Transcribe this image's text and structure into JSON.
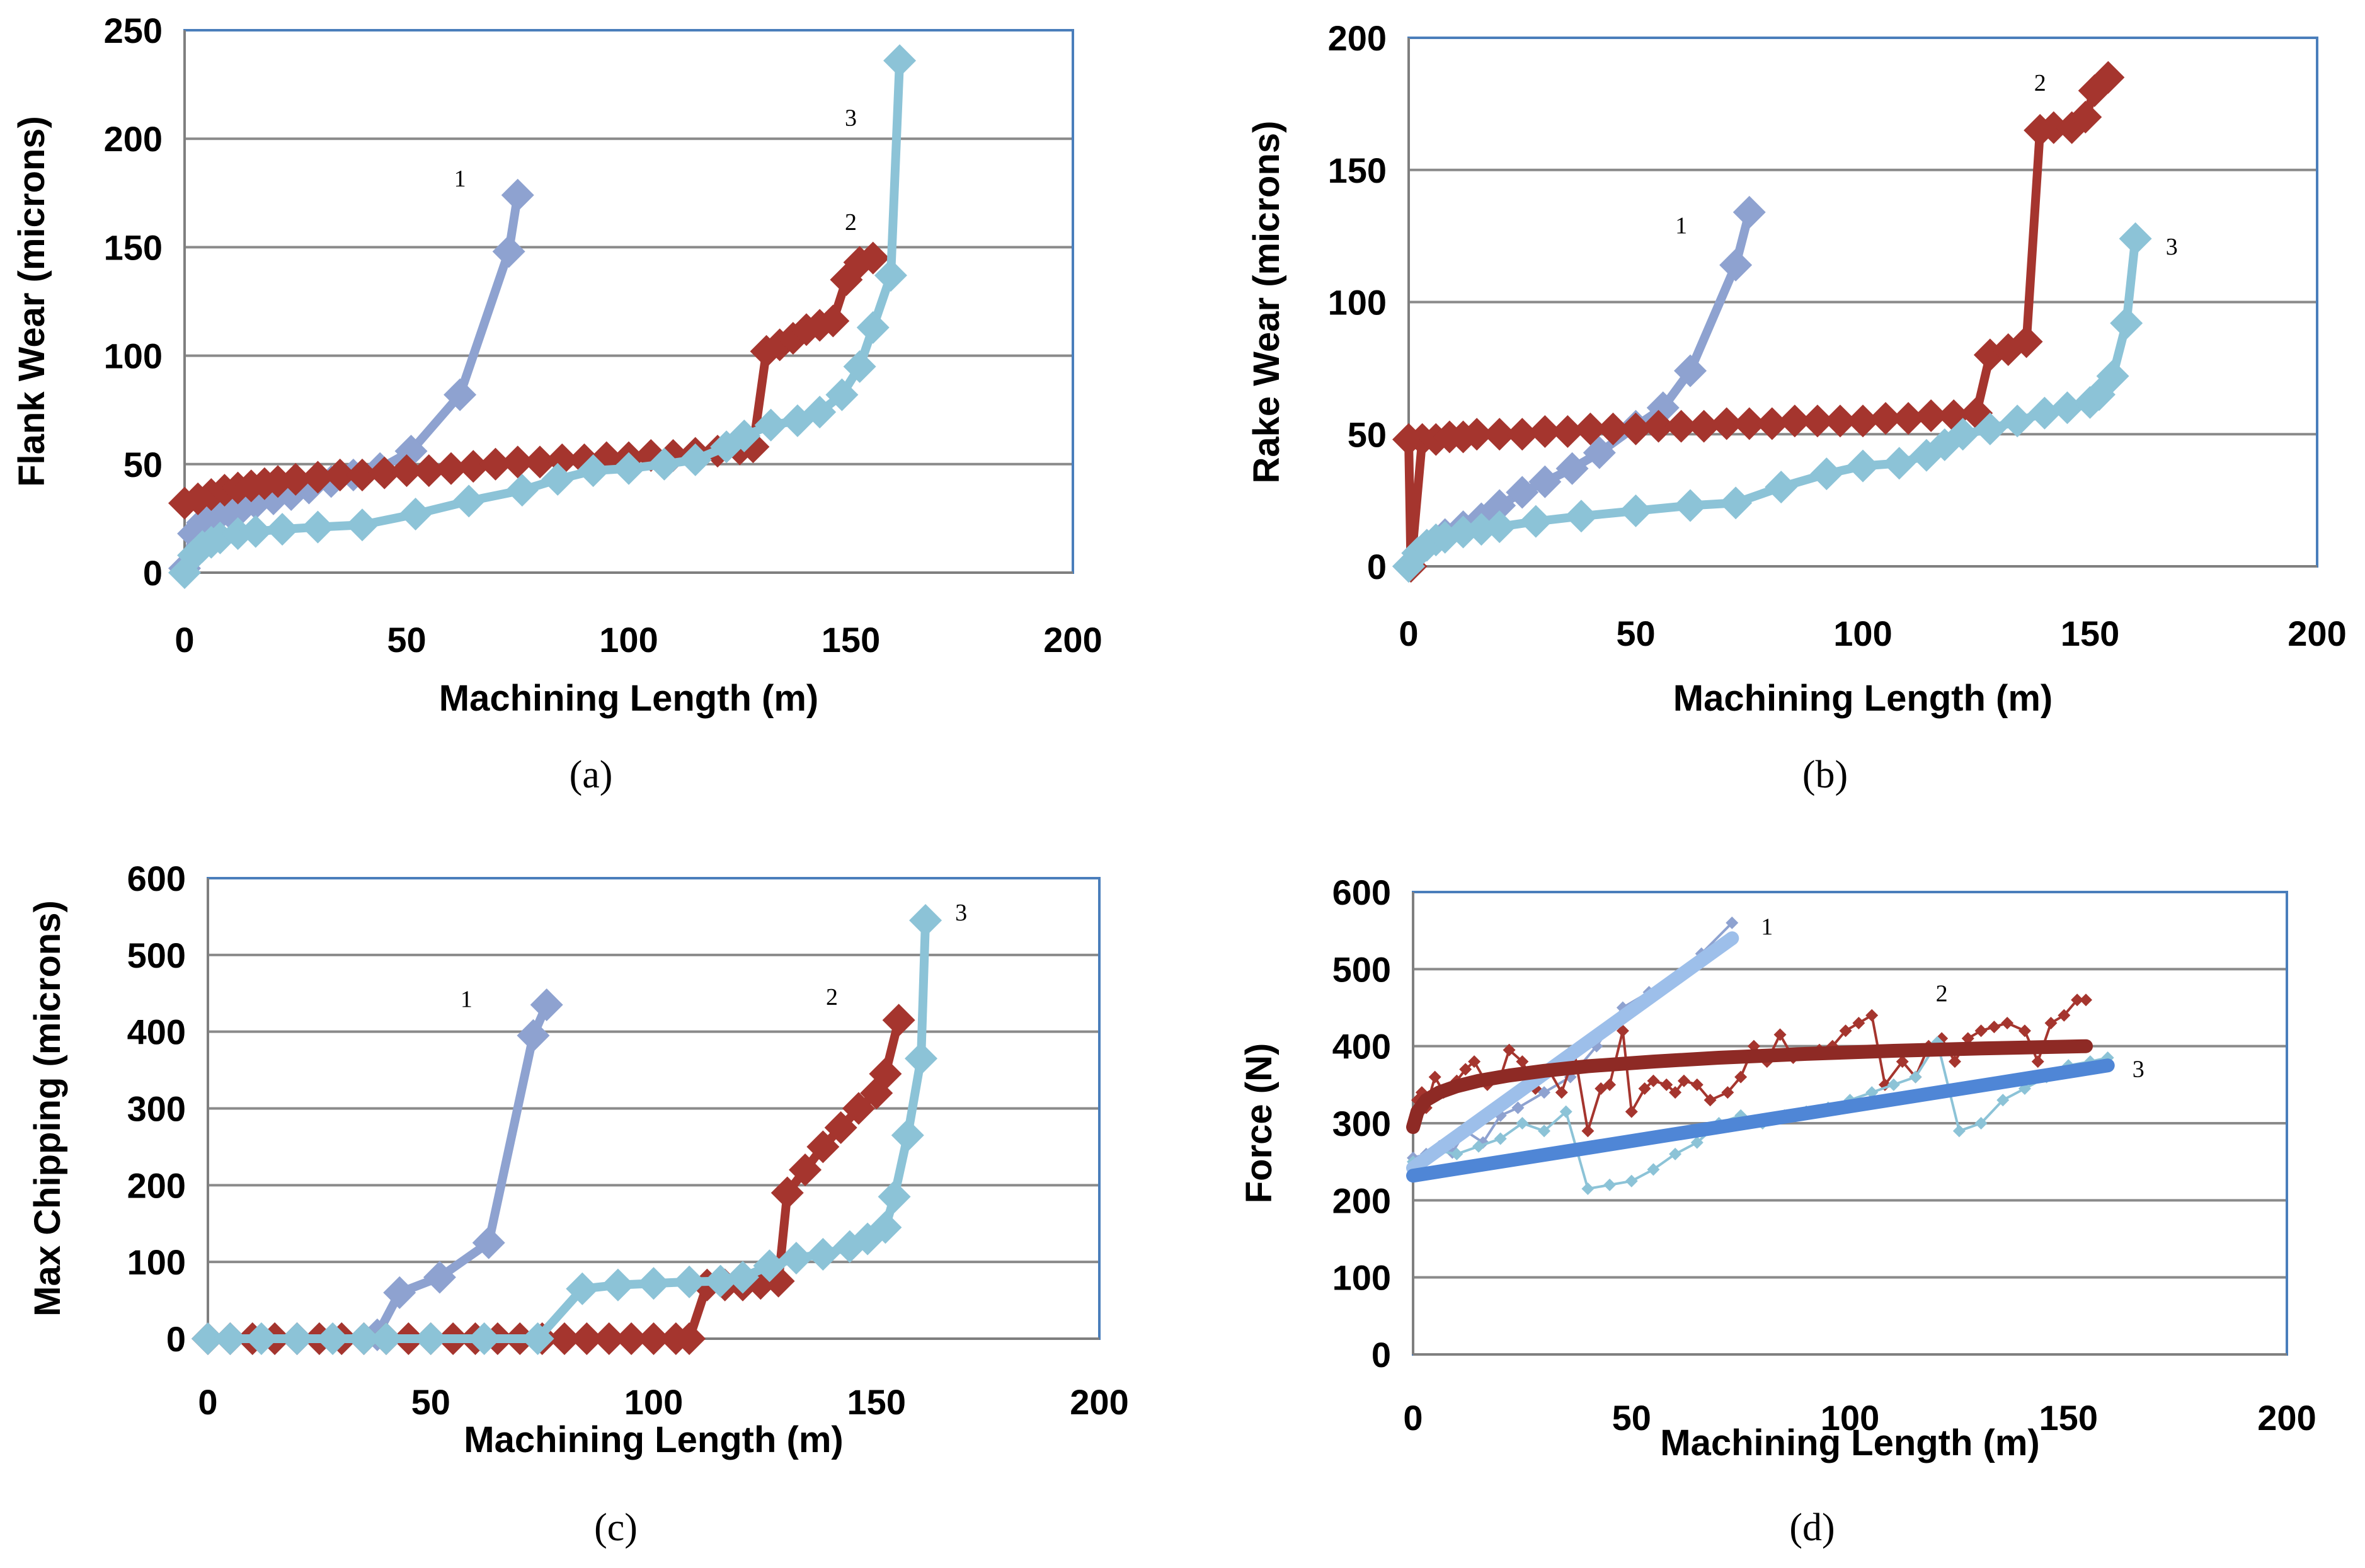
{
  "figure": {
    "panels": [
      "a",
      "b",
      "c",
      "d"
    ]
  },
  "chart_data": [
    {
      "id": "a",
      "type": "line",
      "caption": "(a)",
      "title": "",
      "xlabel": "Machining Length (m)",
      "ylabel": "Flank Wear (microns)",
      "xlim": [
        0,
        200
      ],
      "ylim": [
        0,
        250
      ],
      "xticks": [
        0,
        50,
        100,
        150,
        200
      ],
      "yticks": [
        0,
        50,
        100,
        150,
        200,
        250
      ],
      "grid": "horizontal",
      "series": [
        {
          "name": "1",
          "label": "1",
          "color": "#8EA2D0",
          "x": [
            0,
            2,
            4,
            6,
            8,
            10,
            13,
            16,
            20,
            24,
            28,
            33,
            38,
            44,
            51,
            62,
            73,
            75
          ],
          "y": [
            2,
            18,
            23,
            25,
            27,
            28,
            30,
            32,
            34,
            36,
            39,
            42,
            45,
            48,
            56,
            82,
            148,
            174
          ],
          "label_pos": [
            62,
            178
          ]
        },
        {
          "name": "2",
          "label": "2",
          "color": "#A5352E",
          "x": [
            0,
            3,
            6,
            9,
            12,
            15,
            18,
            21,
            25,
            30,
            35,
            40,
            45,
            50,
            55,
            60,
            65,
            70,
            75,
            80,
            85,
            90,
            95,
            100,
            105,
            110,
            115,
            120,
            125,
            128,
            131,
            134,
            137,
            140,
            143,
            146,
            149,
            152,
            155
          ],
          "y": [
            32,
            34,
            36,
            38,
            39,
            40,
            41,
            42,
            43,
            44,
            45,
            45,
            46,
            47,
            47,
            48,
            49,
            50,
            51,
            51,
            52,
            52,
            53,
            53,
            54,
            54,
            55,
            56,
            57,
            58,
            102,
            105,
            108,
            112,
            114,
            116,
            135,
            143,
            145
          ],
          "label_pos": [
            150,
            158
          ]
        },
        {
          "name": "3",
          "label": "3",
          "color": "#8CC3D7",
          "x": [
            0,
            2,
            4,
            6,
            8,
            12,
            16,
            22,
            30,
            40,
            52,
            64,
            76,
            84,
            92,
            100,
            108,
            115,
            122,
            126,
            132,
            138,
            143,
            148,
            152,
            155,
            159,
            161
          ],
          "y": [
            0,
            8,
            12,
            14,
            16,
            18,
            19,
            20,
            21,
            22,
            27,
            33,
            38,
            43,
            47,
            48,
            50,
            52,
            58,
            63,
            68,
            70,
            74,
            82,
            95,
            113,
            137,
            236
          ],
          "label_pos": [
            150,
            206
          ]
        }
      ]
    },
    {
      "id": "b",
      "type": "line",
      "caption": "(b)",
      "title": "",
      "xlabel": "Machining Length (m)",
      "ylabel": "Rake Wear (microns)",
      "xlim": [
        0,
        200
      ],
      "ylim": [
        0,
        200
      ],
      "xticks": [
        0,
        50,
        100,
        150,
        200
      ],
      "yticks": [
        0,
        50,
        100,
        150,
        200
      ],
      "grid": "horizontal",
      "series": [
        {
          "name": "1",
          "label": "1",
          "color": "#8EA2D0",
          "x": [
            0,
            2,
            4,
            6,
            8,
            12,
            16,
            20,
            25,
            30,
            36,
            42,
            50,
            56,
            62,
            72,
            75
          ],
          "y": [
            0,
            5,
            8,
            10,
            12,
            15,
            18,
            23,
            28,
            32,
            37,
            43,
            53,
            60,
            74,
            114,
            134
          ],
          "label_pos": [
            60,
            126
          ]
        },
        {
          "name": "2",
          "label": "2",
          "color": "#A5352E",
          "x": [
            0,
            0.5,
            3,
            6,
            9,
            12,
            15,
            20,
            25,
            30,
            35,
            40,
            45,
            50,
            55,
            60,
            65,
            70,
            75,
            80,
            85,
            90,
            95,
            100,
            105,
            110,
            115,
            120,
            125,
            128,
            132,
            136,
            139,
            142,
            146,
            149,
            151,
            154
          ],
          "y": [
            48,
            0,
            48,
            48,
            49,
            49,
            50,
            50,
            50,
            51,
            51,
            52,
            52,
            52,
            53,
            53,
            53,
            54,
            54,
            54,
            55,
            55,
            55,
            55,
            56,
            56,
            57,
            57,
            58,
            80,
            82,
            85,
            165,
            166,
            166,
            170,
            180,
            185
          ],
          "label_pos": [
            139,
            180
          ]
        },
        {
          "name": "3",
          "label": "3",
          "color": "#8CC3D7",
          "x": [
            0,
            2,
            4,
            6,
            8,
            12,
            16,
            20,
            28,
            38,
            50,
            62,
            72,
            82,
            92,
            100,
            108,
            114,
            118,
            122,
            128,
            134,
            140,
            145,
            150,
            152,
            155,
            158,
            160
          ],
          "y": [
            0,
            5,
            8,
            10,
            11,
            13,
            14,
            15,
            17,
            19,
            21,
            23,
            24,
            30,
            35,
            38,
            39,
            42,
            46,
            50,
            52,
            55,
            58,
            60,
            62,
            65,
            72,
            92,
            124
          ],
          "label_pos": [
            168,
            118
          ]
        }
      ]
    },
    {
      "id": "c",
      "type": "line",
      "caption": "(c)",
      "title": "",
      "xlabel": "Machining Length (m)",
      "ylabel": "Max Chipping (microns)",
      "xlim": [
        0,
        200
      ],
      "ylim": [
        0,
        600
      ],
      "xticks": [
        0,
        50,
        100,
        150,
        200
      ],
      "yticks": [
        0,
        100,
        200,
        300,
        400,
        500,
        600
      ],
      "grid": "horizontal",
      "series": [
        {
          "name": "1",
          "label": "1",
          "color": "#8EA2D0",
          "x": [
            0,
            5,
            10,
            15,
            20,
            25,
            30,
            35,
            38,
            43,
            52,
            63,
            73,
            76
          ],
          "y": [
            0,
            0,
            0,
            0,
            0,
            0,
            0,
            0,
            5,
            60,
            80,
            125,
            395,
            435
          ],
          "label_pos": [
            58,
            432
          ]
        },
        {
          "name": "2",
          "label": "2",
          "color": "#A5352E",
          "x": [
            0,
            5,
            10,
            15,
            20,
            25,
            30,
            35,
            40,
            45,
            50,
            55,
            60,
            65,
            70,
            75,
            80,
            85,
            90,
            95,
            100,
            105,
            108,
            112,
            116,
            120,
            124,
            128,
            130,
            134,
            138,
            142,
            146,
            150,
            152,
            155
          ],
          "y": [
            0,
            0,
            0,
            0,
            0,
            0,
            0,
            0,
            0,
            0,
            0,
            0,
            0,
            0,
            0,
            0,
            0,
            0,
            0,
            0,
            0,
            0,
            0,
            70,
            70,
            70,
            72,
            75,
            190,
            220,
            250,
            275,
            300,
            320,
            345,
            415
          ],
          "label_pos": [
            140,
            435
          ]
        },
        {
          "name": "3",
          "label": "3",
          "color": "#8CC3D7",
          "x": [
            0,
            5,
            12,
            20,
            28,
            35,
            40,
            50,
            62,
            74,
            84,
            92,
            100,
            108,
            115,
            120,
            126,
            132,
            138,
            144,
            148,
            152,
            154,
            157,
            160,
            161
          ],
          "y": [
            0,
            0,
            0,
            0,
            0,
            0,
            0,
            0,
            0,
            0,
            65,
            70,
            72,
            74,
            75,
            80,
            95,
            105,
            110,
            120,
            130,
            145,
            185,
            265,
            365,
            545
          ],
          "label_pos": [
            169,
            545
          ]
        }
      ]
    },
    {
      "id": "d",
      "type": "line",
      "caption": "(d)",
      "title": "",
      "xlabel": "Machining Length (m)",
      "ylabel": "Force (N)",
      "xlim": [
        0,
        200
      ],
      "ylim": [
        0,
        600
      ],
      "xticks": [
        0,
        50,
        100,
        150,
        200
      ],
      "yticks": [
        0,
        100,
        200,
        300,
        400,
        500,
        600
      ],
      "grid": "horizontal",
      "series": [
        {
          "name": "1",
          "label": "1",
          "color": "#8EA2D0",
          "style": "thin-markers",
          "x": [
            0,
            3,
            6,
            9,
            12,
            16,
            20,
            24,
            30,
            36,
            42,
            48,
            54,
            60,
            66,
            73
          ],
          "y": [
            255,
            260,
            270,
            262,
            290,
            275,
            310,
            320,
            340,
            360,
            400,
            450,
            470,
            490,
            520,
            560
          ],
          "label_pos": [
            81,
            545
          ]
        },
        {
          "name": "2",
          "label": "2",
          "color": "#A5352E",
          "style": "thin-markers",
          "x": [
            0,
            1,
            2,
            3,
            5,
            7,
            10,
            12,
            14,
            17,
            20,
            22,
            25,
            28,
            31,
            34,
            37,
            40,
            43,
            45,
            48,
            50,
            53,
            55,
            58,
            60,
            62,
            65,
            68,
            72,
            75,
            78,
            81,
            84,
            87,
            90,
            93,
            96,
            99,
            102,
            105,
            108,
            112,
            115,
            118,
            121,
            124,
            127,
            130,
            133,
            136,
            140,
            143,
            146,
            149,
            152,
            154
          ],
          "y": [
            300,
            330,
            340,
            320,
            360,
            340,
            355,
            370,
            380,
            350,
            360,
            395,
            380,
            345,
            370,
            340,
            390,
            290,
            345,
            350,
            420,
            315,
            345,
            355,
            350,
            340,
            355,
            350,
            330,
            340,
            360,
            400,
            380,
            415,
            385,
            390,
            395,
            400,
            420,
            430,
            440,
            350,
            380,
            360,
            400,
            410,
            380,
            410,
            420,
            425,
            430,
            420,
            380,
            430,
            440,
            460,
            460
          ],
          "label_pos": [
            121,
            458
          ]
        },
        {
          "name": "3",
          "label": "3",
          "color": "#8CC3D7",
          "style": "thin-markers",
          "x": [
            0,
            5,
            10,
            15,
            20,
            25,
            30,
            35,
            40,
            45,
            50,
            55,
            60,
            65,
            70,
            75,
            80,
            85,
            90,
            95,
            100,
            105,
            110,
            115,
            120,
            125,
            130,
            135,
            140,
            145,
            150,
            155,
            159
          ],
          "y": [
            250,
            265,
            260,
            270,
            280,
            300,
            290,
            315,
            215,
            220,
            225,
            240,
            260,
            275,
            300,
            310,
            300,
            310,
            315,
            320,
            330,
            340,
            350,
            360,
            405,
            290,
            300,
            330,
            345,
            360,
            375,
            380,
            385
          ],
          "label_pos": [
            166,
            360
          ]
        },
        {
          "name": "Trend 1",
          "label": "",
          "color": "#9DBFEA",
          "style": "trend",
          "x": [
            0,
            73
          ],
          "y": [
            242,
            540
          ]
        },
        {
          "name": "Trend 2",
          "label": "",
          "color": "#8E2A25",
          "style": "trend",
          "x": [
            0,
            1,
            3,
            6,
            10,
            15,
            22,
            30,
            40,
            55,
            70,
            90,
            110,
            130,
            154
          ],
          "y": [
            295,
            315,
            330,
            340,
            348,
            355,
            362,
            368,
            374,
            380,
            385,
            390,
            394,
            397,
            400
          ]
        },
        {
          "name": "Trend 3",
          "label": "",
          "color": "#4F86D6",
          "style": "trend",
          "x": [
            0,
            159
          ],
          "y": [
            232,
            375
          ]
        }
      ]
    }
  ]
}
